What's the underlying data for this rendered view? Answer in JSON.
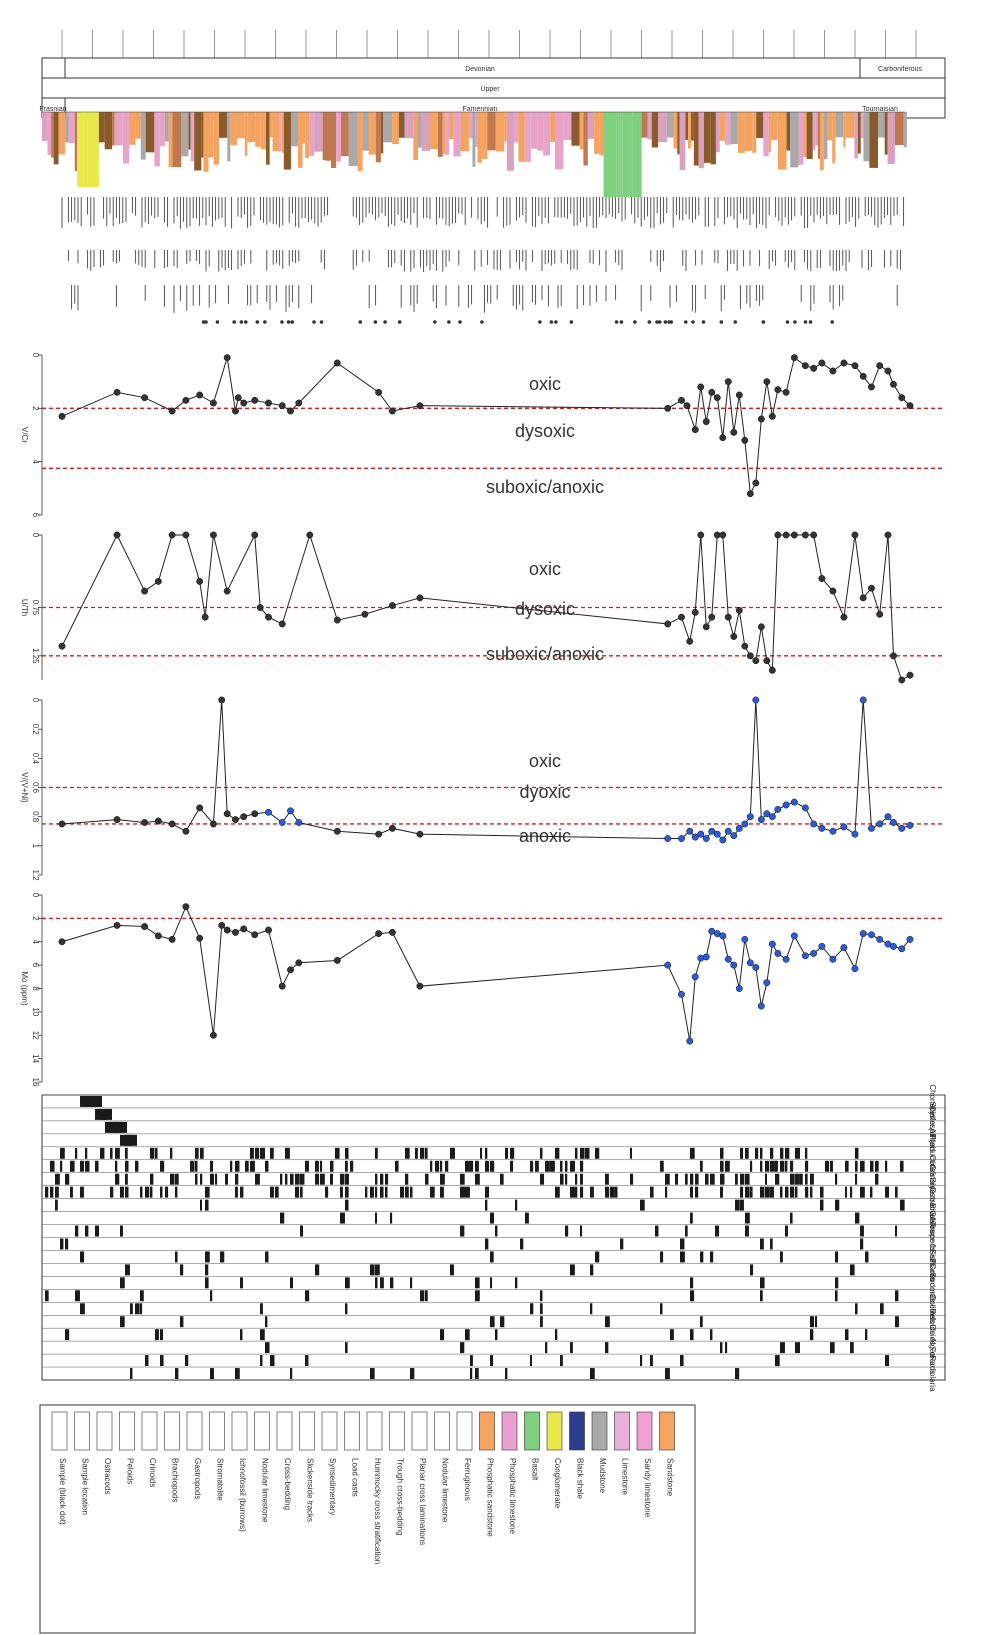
{
  "header": {
    "system": "Devonian",
    "system_right": "Carboniferous",
    "series": "Upper",
    "stage_left": "Frasnian",
    "stage_mid": "Famennian",
    "stage_right": "Tournaisian"
  },
  "colors": {
    "sandstone": "#f4a460",
    "sandy_limestone": "#e8a4c8",
    "limestone": "#d9a0c0",
    "mudstone": "#a9a9a9",
    "black_shale": "#2b3d8c",
    "conglomerate": "#e8e84a",
    "basalt": "#7fd07f",
    "brown": "#8b5a2b",
    "threshold_line": "#d11a1a",
    "series_line": "#222222",
    "marker_dark": "#333333",
    "marker_blue": "#2a5bd7"
  },
  "chart_data": [
    {
      "type": "line",
      "ylabel": "V/Cr",
      "ylim": [
        0,
        6
      ],
      "invert_y": true,
      "yticks": [
        "0",
        "2",
        "4",
        "6"
      ],
      "zones": [
        "oxic",
        "dysoxic",
        "suboxic/anoxic"
      ],
      "thresholds": [
        2,
        4.25
      ],
      "series": [
        {
          "x": [
            1,
            3,
            4,
            5,
            5.5,
            6,
            6.5,
            7,
            7.3,
            7.4,
            7.6,
            8,
            8.5,
            9,
            9.3,
            9.6,
            11,
            12.5,
            13,
            14,
            23,
            23.5,
            23.7,
            24,
            24.2,
            24.4,
            24.6,
            24.8,
            25,
            25.2,
            25.4,
            25.6,
            25.8,
            26,
            26.2,
            26.4,
            26.6,
            26.8,
            27,
            27.3,
            27.6,
            28,
            28.3,
            28.6,
            29,
            29.4,
            29.8,
            30.1,
            30.4,
            30.7,
            31,
            31.2,
            31.5,
            31.8
          ],
          "y": [
            2.3,
            1.4,
            1.6,
            2.1,
            1.7,
            1.5,
            1.8,
            0.1,
            2.1,
            1.6,
            1.8,
            1.7,
            1.8,
            1.9,
            2.1,
            1.8,
            0.3,
            1.4,
            2.1,
            1.9,
            2.0,
            1.7,
            1.9,
            2.8,
            1.2,
            2.5,
            1.4,
            1.6,
            3.1,
            1.0,
            2.9,
            1.5,
            3.2,
            5.2,
            4.8,
            2.4,
            1.0,
            2.3,
            1.3,
            1.4,
            0.1,
            0.4,
            0.5,
            0.3,
            0.6,
            0.3,
            0.4,
            0.8,
            1.2,
            0.4,
            0.6,
            1.1,
            1.6,
            1.9
          ]
        }
      ]
    },
    {
      "type": "line",
      "ylabel": "U/Th",
      "ylim": [
        0,
        1.5
      ],
      "invert_y": true,
      "yticks": [
        "0",
        "0.75",
        "1.25"
      ],
      "zones": [
        "oxic",
        "dysoxic",
        "suboxic/anoxic"
      ],
      "thresholds": [
        0.75,
        1.25
      ],
      "series": [
        {
          "x": [
            1,
            3,
            4,
            4.5,
            5,
            5.5,
            6,
            6.2,
            6.5,
            7,
            8,
            8.2,
            8.5,
            9,
            10,
            11,
            12,
            13,
            14,
            23,
            23.5,
            23.8,
            24,
            24.2,
            24.4,
            24.6,
            24.8,
            25,
            25.2,
            25.4,
            25.6,
            25.8,
            26,
            26.2,
            26.4,
            26.6,
            26.8,
            27,
            27.3,
            27.6,
            28,
            28.3,
            28.6,
            29,
            29.4,
            29.8,
            30.1,
            30.4,
            30.7,
            31,
            31.2,
            31.5,
            31.8
          ],
          "y": [
            1.15,
            0.0,
            0.58,
            0.48,
            0.0,
            0.0,
            0.48,
            0.85,
            0.0,
            0.58,
            0.0,
            0.75,
            0.85,
            0.92,
            0.0,
            0.88,
            0.82,
            0.73,
            0.65,
            0.92,
            0.85,
            1.1,
            0.8,
            0.0,
            0.95,
            0.85,
            0.0,
            0.0,
            0.85,
            1.05,
            0.78,
            1.15,
            1.25,
            1.3,
            0.95,
            1.3,
            1.4,
            0.0,
            0.0,
            0.0,
            0.0,
            0.0,
            0.45,
            0.58,
            0.85,
            0.0,
            0.65,
            0.55,
            0.82,
            0.0,
            1.25,
            1.5,
            1.45
          ]
        }
      ]
    },
    {
      "type": "line",
      "ylabel": "V/(V+Ni)",
      "ylim": [
        0,
        1.2
      ],
      "invert_y": true,
      "yticks": [
        "0",
        "0.2",
        "0.4",
        "0.6",
        "0.8",
        "1",
        "1.2"
      ],
      "zones": [
        "oxic",
        "dyoxic",
        "anoxic"
      ],
      "thresholds": [
        0.6,
        0.85
      ],
      "series": [
        {
          "x": [
            1,
            3,
            4,
            4.5,
            5,
            5.5,
            6,
            6.5,
            6.8,
            7,
            7.3,
            7.6,
            8,
            8.5,
            9,
            9.3,
            9.6,
            11,
            12.5,
            13,
            14,
            23,
            23.5,
            23.8,
            24,
            24.2,
            24.4,
            24.6,
            24.8,
            25,
            25.2,
            25.4,
            25.6,
            25.8,
            26,
            26.2,
            26.4,
            26.6,
            26.8,
            27,
            27.3,
            27.6,
            28,
            28.3,
            28.6,
            29,
            29.4,
            29.8,
            30.1,
            30.4,
            30.7,
            31,
            31.2,
            31.5,
            31.8
          ],
          "y": [
            0.85,
            0.82,
            0.84,
            0.83,
            0.85,
            0.9,
            0.74,
            0.85,
            0.0,
            0.78,
            0.82,
            0.8,
            0.78,
            0.77,
            0.84,
            0.76,
            0.84,
            0.9,
            0.92,
            0.88,
            0.92,
            0.95,
            0.95,
            0.9,
            0.94,
            0.92,
            0.95,
            0.9,
            0.92,
            0.96,
            0.9,
            0.93,
            0.88,
            0.85,
            0.8,
            0.0,
            0.82,
            0.78,
            0.8,
            0.75,
            0.72,
            0.7,
            0.74,
            0.85,
            0.88,
            0.9,
            0.87,
            0.92,
            0.0,
            0.88,
            0.85,
            0.8,
            0.84,
            0.88,
            0.86
          ]
        }
      ]
    },
    {
      "type": "line",
      "ylabel": "Mo (ppm)",
      "ylim": [
        0,
        16
      ],
      "invert_y": true,
      "yticks": [
        "0",
        "2",
        "4",
        "6",
        "8",
        "10",
        "12",
        "14",
        "16"
      ],
      "thresholds": [
        2
      ],
      "series": [
        {
          "x": [
            1,
            3,
            4,
            4.5,
            5,
            5.5,
            6,
            6.5,
            6.8,
            7,
            7.3,
            7.6,
            8,
            8.5,
            9,
            9.3,
            9.6,
            11,
            12.5,
            13,
            14,
            23,
            23.5,
            23.8,
            24,
            24.2,
            24.4,
            24.6,
            24.8,
            25,
            25.2,
            25.4,
            25.6,
            25.8,
            26,
            26.2,
            26.4,
            26.6,
            26.8,
            27,
            27.3,
            27.6,
            28,
            28.3,
            28.6,
            29,
            29.4,
            29.8,
            30.1,
            30.4,
            30.7,
            31,
            31.2,
            31.5,
            31.8
          ],
          "y": [
            4.0,
            2.6,
            2.7,
            3.5,
            3.8,
            1.0,
            3.7,
            12.0,
            2.6,
            3.0,
            3.2,
            2.9,
            3.4,
            3.0,
            7.8,
            6.4,
            5.8,
            5.6,
            3.3,
            3.2,
            7.8,
            6.0,
            8.5,
            12.5,
            7.0,
            5.4,
            5.3,
            3.1,
            3.3,
            3.5,
            5.5,
            6.0,
            8.0,
            3.8,
            5.8,
            6.2,
            9.5,
            7.5,
            4.2,
            5.0,
            5.5,
            3.5,
            5.2,
            5.0,
            4.4,
            5.5,
            4.5,
            6.3,
            3.3,
            3.4,
            3.8,
            4.2,
            4.4,
            4.6,
            3.8
          ]
        }
      ]
    }
  ],
  "fossil_rows": [
    "Chonetes",
    "Spirifer",
    "Cyrtospirifer",
    "Athyris",
    "Productids",
    "Corals",
    "Crinoids",
    "Bryozoa",
    "Ostracods",
    "Bivalves",
    "Gastropods",
    "Trace fossils",
    "Fish",
    "Plants",
    "Conodonts",
    "Stromatolites",
    "Oncoids",
    "Peloids",
    "Ooids",
    "Algae",
    "Forams",
    "Radiolaria"
  ],
  "legend": {
    "items": [
      "Sample (black dot)",
      "Sample location",
      "Ostracods",
      "Peloids",
      "Crinoids",
      "Brachiopods",
      "Gastropods",
      "Stromatolite",
      "Ichnofossil (burrows)",
      "Nodular limestone",
      "Cross-bedding",
      "Slickenside tracks",
      "Synsedimentary",
      "Load casts",
      "Hummocky cross stratification",
      "Trough cross-bedding",
      "Planar cross laminations",
      "Nodular limestone",
      "Ferruginous",
      "Phosphatic sandstone",
      "Phosphatic limestone",
      "Basalt",
      "Conglomerate",
      "Black shale",
      "Mudstone",
      "Limestone",
      "Sandy limestone",
      "Sandstone"
    ]
  }
}
